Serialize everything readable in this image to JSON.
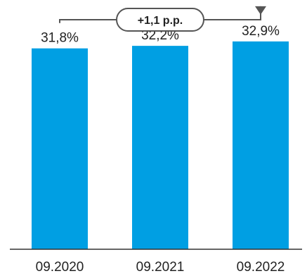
{
  "chart_data": {
    "type": "bar",
    "categories": [
      "09.2020",
      "09.2021",
      "09.2022"
    ],
    "values": [
      31.8,
      32.2,
      32.9
    ],
    "value_labels": [
      "31,8%",
      "32,2%",
      "32,9%"
    ],
    "unit": "%",
    "ylim": [
      0,
      35
    ],
    "grid": false,
    "legend": "none",
    "bar_color": "#009FE3",
    "annotation": {
      "text": "+1,1 p.p.",
      "from_category": "09.2020",
      "to_category": "09.2022"
    }
  }
}
